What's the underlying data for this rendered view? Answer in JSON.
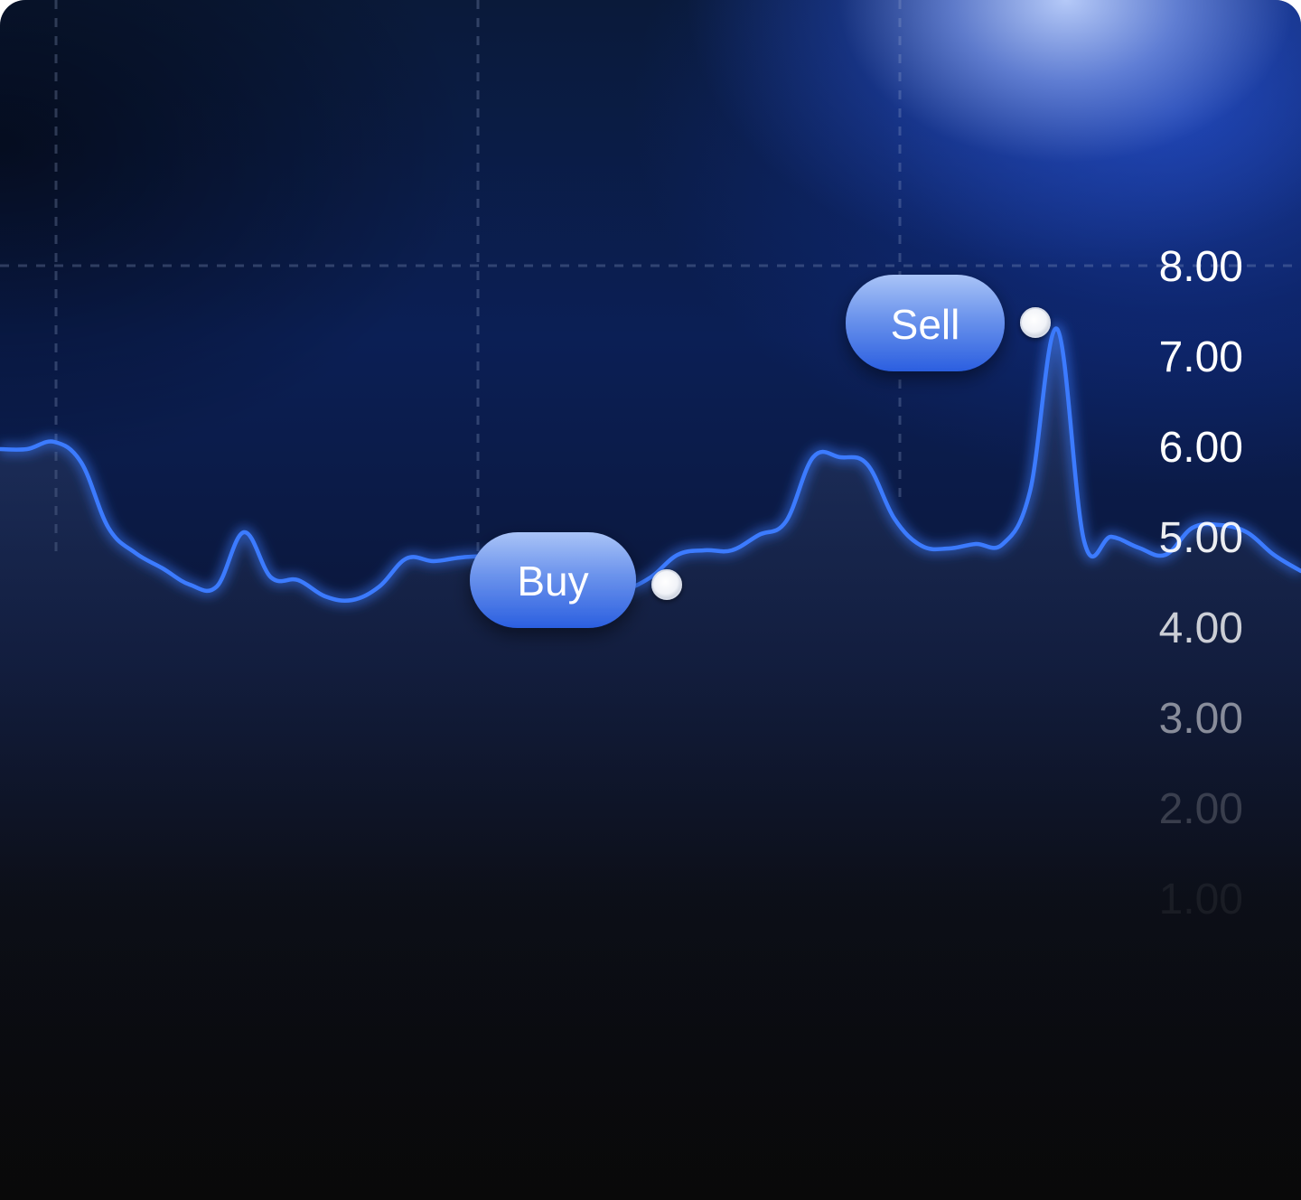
{
  "chart_data": {
    "type": "line",
    "ytick_labels": [
      "8.00",
      "7.00",
      "6.00",
      "5.00",
      "4.00",
      "3.00",
      "2.00",
      "1.00"
    ],
    "ylim": [
      0,
      8
    ],
    "grid": true,
    "series": [
      {
        "values": [
          5.97,
          5.97,
          6.05,
          5.82,
          5.1,
          4.82,
          4.65,
          4.47,
          4.45,
          5.05,
          4.55,
          4.52,
          4.34,
          4.3,
          4.45,
          4.76,
          4.73,
          4.77,
          4.78,
          4.7,
          4.55,
          4.46,
          4.47,
          4.42,
          4.55,
          4.8,
          4.85,
          4.85,
          5.02,
          5.17,
          5.88,
          5.88,
          5.8,
          5.2,
          4.9,
          4.87,
          4.92,
          4.92,
          5.5,
          7.3,
          4.95,
          5.0,
          4.88,
          4.8,
          5.1,
          5.13,
          5.05,
          4.8,
          4.62
        ],
        "color": "#3c7bff"
      }
    ],
    "annotations": [
      {
        "label": "Buy",
        "value": 4.47
      },
      {
        "label": "Sell",
        "value": 7.37
      }
    ]
  },
  "buttons": {
    "buy_label": "Buy",
    "sell_label": "Sell"
  },
  "colors": {
    "line": "#3c7bff",
    "pill_top": "#9bb8f5",
    "pill_bottom": "#2a5ddf"
  }
}
